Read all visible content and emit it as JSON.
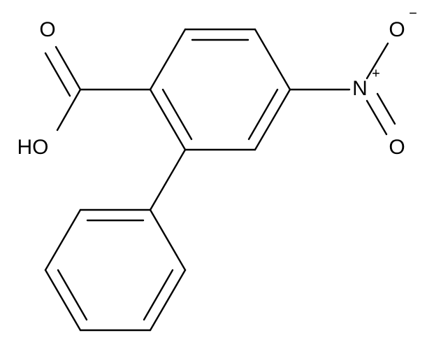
{
  "atoms": [
    {
      "label": "O"
    },
    {
      "label": "HO"
    },
    {
      "label": "N",
      "charge": "+"
    },
    {
      "label": "O",
      "charge": "-"
    },
    {
      "label": "O"
    }
  ]
}
